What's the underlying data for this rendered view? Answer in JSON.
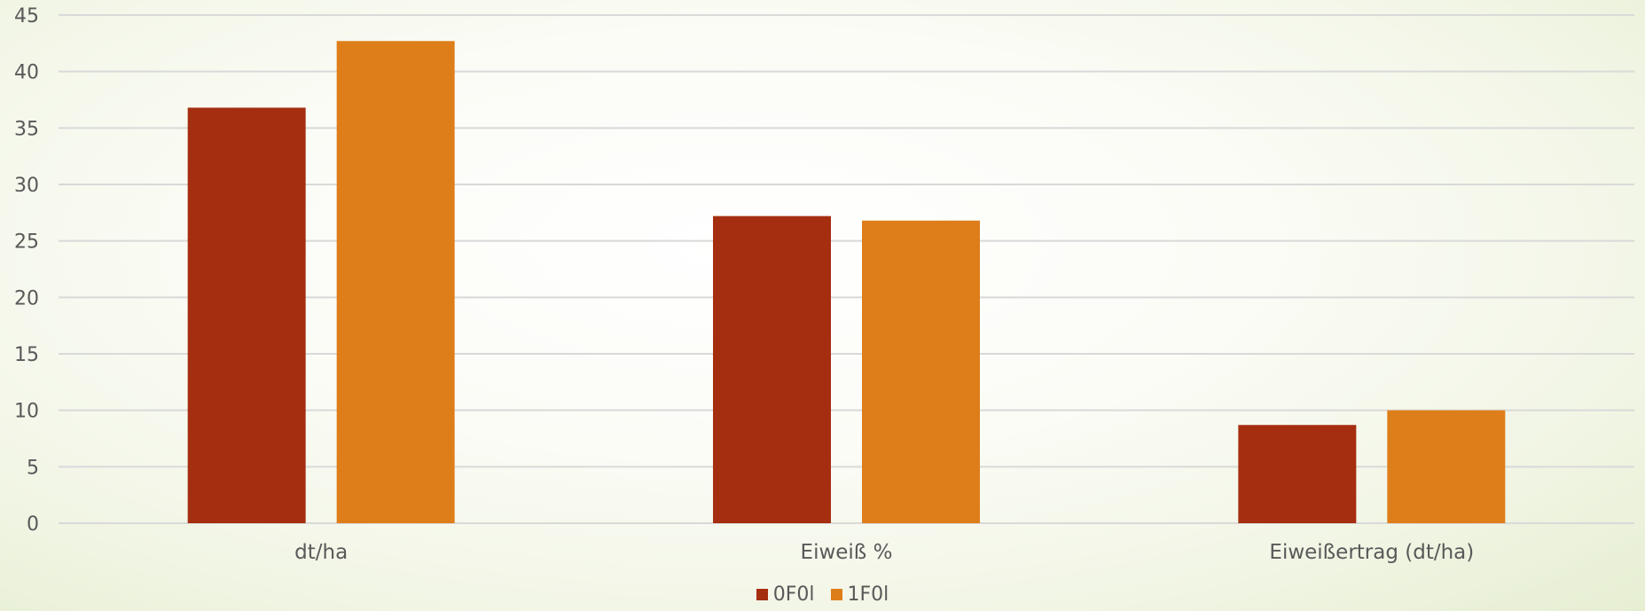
{
  "chart_data": {
    "type": "bar",
    "title": "",
    "xlabel": "",
    "ylabel": "",
    "categories": [
      "dt/ha",
      "Eiweiß %",
      "Eiweißertrag (dt/ha)"
    ],
    "series": [
      {
        "name": "0F0l",
        "color": "#a52e10",
        "values": [
          36.8,
          27.2,
          8.7
        ]
      },
      {
        "name": "1F0l",
        "color": "#de7e1a",
        "values": [
          42.7,
          26.8,
          10.0
        ]
      }
    ],
    "ylim": [
      0,
      45
    ],
    "yticks": [
      0,
      5,
      10,
      15,
      20,
      25,
      30,
      35,
      40,
      45
    ],
    "grid": true,
    "legend_position": "bottom"
  }
}
